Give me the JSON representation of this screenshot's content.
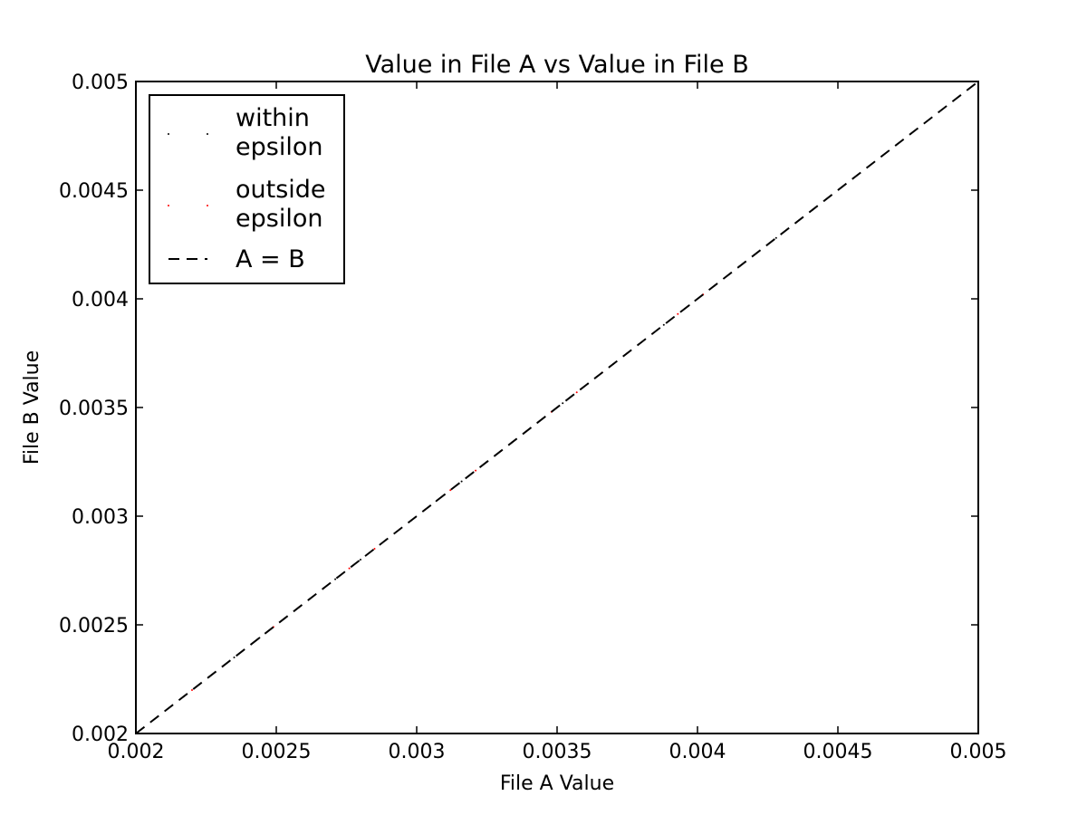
{
  "chart_data": {
    "type": "scatter",
    "title": "Value in File A vs Value in File B",
    "xlabel": "File A Value",
    "ylabel": "File B Value",
    "xlim": [
      0.002,
      0.005
    ],
    "ylim": [
      0.002,
      0.005
    ],
    "x_ticks": [
      "0.002",
      "0.0025",
      "0.003",
      "0.0035",
      "0.004",
      "0.0045",
      "0.005"
    ],
    "y_ticks": [
      "0.002",
      "0.0025",
      "0.003",
      "0.0035",
      "0.004",
      "0.0045",
      "0.005"
    ],
    "grid": false,
    "legend_position": "upper-left",
    "series": [
      {
        "name": "within\nepsilon",
        "marker_color": "#000000",
        "points": [
          [
            0.00217,
            0.00217
          ],
          [
            0.00226,
            0.00226
          ],
          [
            0.00235,
            0.00235
          ],
          [
            0.00244,
            0.00244
          ],
          [
            0.00253,
            0.00253
          ],
          [
            0.00262,
            0.00262
          ],
          [
            0.00271,
            0.00271
          ],
          [
            0.0028,
            0.0028
          ],
          [
            0.00289,
            0.00289
          ],
          [
            0.00298,
            0.00298
          ],
          [
            0.00307,
            0.00307
          ],
          [
            0.00316,
            0.00316
          ],
          [
            0.00325,
            0.00325
          ],
          [
            0.00334,
            0.00334
          ],
          [
            0.00343,
            0.00343
          ],
          [
            0.00352,
            0.00352
          ],
          [
            0.00361,
            0.00361
          ],
          [
            0.0037,
            0.0037
          ],
          [
            0.00379,
            0.00379
          ],
          [
            0.00388,
            0.00388
          ],
          [
            0.00397,
            0.00397
          ],
          [
            0.00406,
            0.00406
          ],
          [
            0.00415,
            0.00415
          ],
          [
            0.00428,
            0.00428
          ],
          [
            0.00441,
            0.00441
          ]
        ]
      },
      {
        "name": "outside\nepsilon",
        "marker_color": "#ff0000",
        "points": [
          [
            0.0022,
            0.0022
          ],
          [
            0.00231,
            0.00231
          ],
          [
            0.00249,
            0.00249
          ],
          [
            0.00258,
            0.00258
          ],
          [
            0.00267,
            0.00267
          ],
          [
            0.00276,
            0.00276
          ],
          [
            0.00285,
            0.00285
          ],
          [
            0.00294,
            0.00294
          ],
          [
            0.00303,
            0.00303
          ],
          [
            0.00312,
            0.00312
          ],
          [
            0.00321,
            0.00321
          ],
          [
            0.0033,
            0.0033
          ],
          [
            0.00339,
            0.00339
          ],
          [
            0.00348,
            0.00348
          ],
          [
            0.00357,
            0.00357
          ],
          [
            0.00366,
            0.00366
          ],
          [
            0.00375,
            0.00375
          ],
          [
            0.00384,
            0.00384
          ],
          [
            0.00393,
            0.00393
          ],
          [
            0.00402,
            0.00402
          ]
        ]
      },
      {
        "name": "A = B",
        "line_color": "#000000",
        "line_style": "dashed",
        "points": [
          [
            0.002,
            0.002
          ],
          [
            0.005,
            0.005
          ]
        ]
      }
    ]
  },
  "colors": {
    "background": "#ffffff",
    "axes": "#000000",
    "reference_line": "#000000",
    "within_marker": "#000000",
    "outside_marker": "#ff0000"
  }
}
